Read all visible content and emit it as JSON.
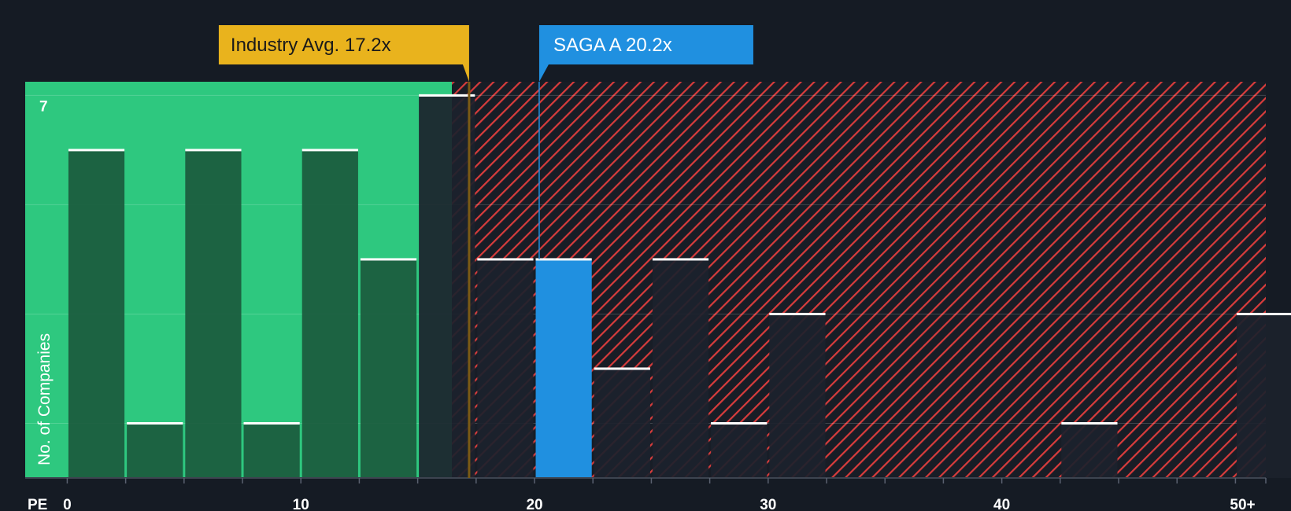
{
  "chart_data": {
    "type": "bar",
    "title": "",
    "xlabel": "PE",
    "ylabel": "No. of Companies",
    "x_bins_start": [
      0,
      2.5,
      5,
      7.5,
      10,
      12.5,
      15,
      17.5,
      20,
      22.5,
      25,
      27.5,
      30,
      32.5,
      35,
      37.5,
      40,
      42.5,
      45,
      47.5,
      50
    ],
    "values": [
      6,
      1,
      6,
      1,
      6,
      4,
      7,
      4,
      4,
      2,
      4,
      1,
      3,
      0,
      0,
      0,
      0,
      1,
      0,
      0,
      3
    ],
    "x_ticks": [
      {
        "value": 0,
        "label": "0"
      },
      {
        "value": 10,
        "label": "10"
      },
      {
        "value": 20,
        "label": "20"
      },
      {
        "value": 30,
        "label": "30"
      },
      {
        "value": 40,
        "label": "40"
      },
      {
        "value": 50,
        "label": "50+"
      }
    ],
    "y_ticks": [
      {
        "value": 7,
        "label": "7"
      }
    ],
    "ylim": [
      0,
      7.25
    ],
    "xlim": [
      -1.8,
      51.3
    ],
    "grid": true,
    "industry_avg": {
      "value": 17.2,
      "label": "Industry Avg. 17.2x"
    },
    "company": {
      "name": "SAGA A",
      "value": 20.2,
      "label": "SAGA A 20.2x",
      "bin_start": 20
    },
    "colors": {
      "background": "#151b24",
      "undervalued_fill": "#2ec87f",
      "undervalued_bar": "#1b5a3d",
      "overvalued_stripe": "#d83c3c",
      "overvalued_bar": "#1c222c",
      "company_bar": "#2090e0",
      "industry_callout": "#e9b31d",
      "bar_top": "#ffffff"
    }
  }
}
